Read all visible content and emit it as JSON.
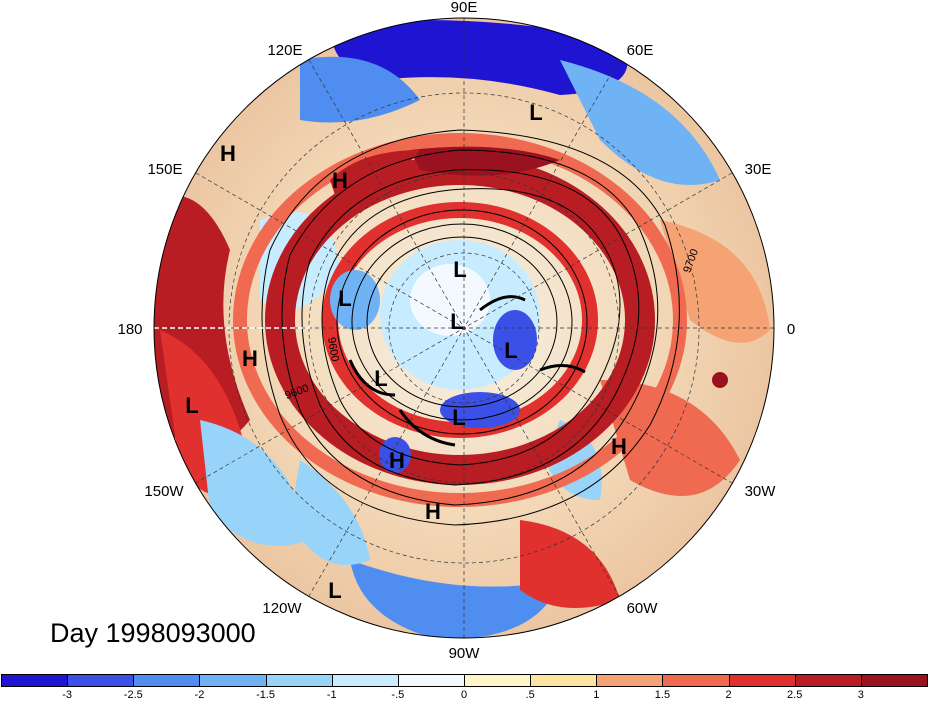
{
  "title": "Day 1998093000",
  "longitude_labels": [
    "90E",
    "60E",
    "30E",
    "0",
    "30W",
    "60W",
    "90W",
    "120W",
    "150W",
    "180",
    "150E",
    "120E"
  ],
  "pressure_centers": [
    "H",
    "H",
    "H",
    "L",
    "L",
    "L",
    "L",
    "L",
    "L",
    "H",
    "L",
    "L",
    "H",
    "H",
    "L"
  ],
  "contour_labels": [
    "9700",
    "9600",
    "9600"
  ],
  "colorbar": {
    "tick_labels": [
      "-3",
      "-2.5",
      "-2",
      "-1.5",
      "-1",
      "-.5",
      "0",
      ".5",
      "1",
      "1.5",
      "2",
      "2.5",
      "3"
    ],
    "colors": [
      "#1e14d2",
      "#3a50e6",
      "#4f8ef0",
      "#6fb3f5",
      "#98d4fa",
      "#c8ecff",
      "#f4f8ff",
      "#fff5c8",
      "#fce3a0",
      "#f5a374",
      "#ef6a50",
      "#e0312f",
      "#b81d24",
      "#9a1220"
    ]
  },
  "colors": {
    "projection_line_180": "#ffffff",
    "coastline": "#000000"
  }
}
